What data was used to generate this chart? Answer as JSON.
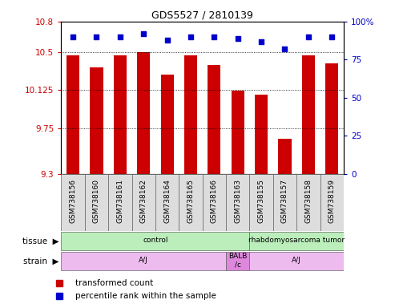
{
  "title": "GDS5527 / 2810139",
  "samples": [
    "GSM738156",
    "GSM738160",
    "GSM738161",
    "GSM738162",
    "GSM738164",
    "GSM738165",
    "GSM738166",
    "GSM738163",
    "GSM738155",
    "GSM738157",
    "GSM738158",
    "GSM738159"
  ],
  "bar_values": [
    10.47,
    10.35,
    10.47,
    10.5,
    10.28,
    10.47,
    10.37,
    10.12,
    10.08,
    9.65,
    10.47,
    10.39
  ],
  "dot_values": [
    90,
    90,
    90,
    92,
    88,
    90,
    90,
    89,
    87,
    82,
    90,
    90
  ],
  "ylim_left": [
    9.3,
    10.8
  ],
  "ylim_right": [
    0,
    100
  ],
  "yticks_left": [
    9.3,
    9.75,
    10.125,
    10.5,
    10.8
  ],
  "ytick_labels_left": [
    "9.3",
    "9.75",
    "10.125",
    "10.5",
    "10.8"
  ],
  "yticks_right": [
    0,
    25,
    50,
    75,
    100
  ],
  "ytick_labels_right": [
    "0",
    "25",
    "50",
    "75",
    "100%"
  ],
  "bar_color": "#cc0000",
  "dot_color": "#0000cc",
  "tissue_boundaries": [
    [
      0,
      7,
      "control",
      "#bbeebb"
    ],
    [
      8,
      11,
      "rhabdomyosarcoma tumor",
      "#bbeebb"
    ]
  ],
  "strain_boundaries": [
    [
      0,
      6,
      "A/J",
      "#eebbee"
    ],
    [
      7,
      7,
      "BALB\n/c",
      "#dd88dd"
    ],
    [
      8,
      11,
      "A/J",
      "#eebbee"
    ]
  ],
  "label_cell_color": "#dddddd",
  "legend_items": [
    {
      "color": "#cc0000",
      "label": "transformed count"
    },
    {
      "color": "#0000cc",
      "label": "percentile rank within the sample"
    }
  ],
  "axis_color_left": "#cc0000",
  "axis_color_right": "#0000cc",
  "background_color": "#ffffff"
}
